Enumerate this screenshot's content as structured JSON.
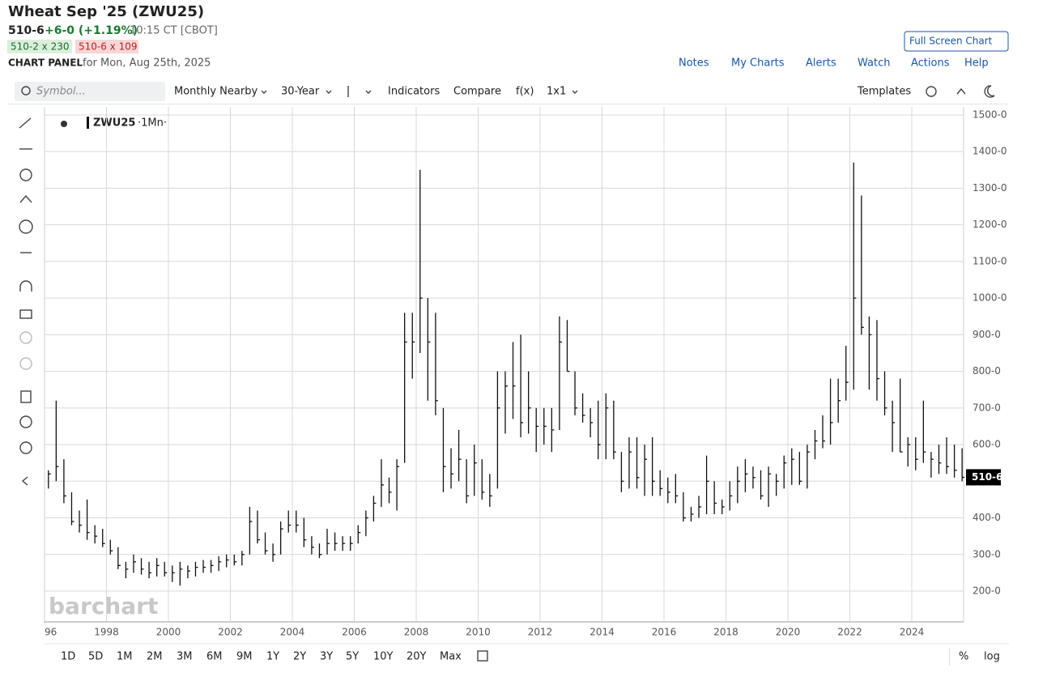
{
  "header": {
    "title": "Wheat Sep '25 (ZWU25)",
    "price": "510-6",
    "change": "+6-0 (+1.19%)",
    "time": "10:15 CT [CBOT]",
    "bid": "510-2 x 230",
    "ask": "510-6 x 109",
    "panel_label": "CHART PANEL",
    "panel_date": "for Mon, Aug 25th, 2025",
    "full_screen": "Full Screen Chart"
  },
  "nav": [
    "Notes",
    "My Charts",
    "Alerts",
    "Watch",
    "Actions",
    "Help"
  ],
  "toolbar": {
    "symbol_placeholder": "Symbol...",
    "items": [
      "Monthly Nearby",
      "30-Year",
      "Indicators",
      "Compare",
      "f(x)",
      "1x1"
    ],
    "templates": "Templates"
  },
  "ranges": [
    "1D",
    "5D",
    "1M",
    "2M",
    "3M",
    "6M",
    "9M",
    "1Y",
    "2Y",
    "3Y",
    "5Y",
    "10Y",
    "20Y",
    "Max"
  ],
  "bottom_options": [
    "%",
    "log"
  ],
  "chart_data": {
    "type": "ohlc",
    "watermark": "barchart",
    "legend_interval": "·1Mn·",
    "last_value_label": "510-6",
    "categories": [
      "96",
      null,
      null,
      null,
      null,
      null,
      null,
      null,
      "1998",
      null,
      null,
      null,
      null,
      null,
      null,
      null,
      "2000",
      null,
      null,
      null,
      null,
      null,
      null,
      null,
      "2002",
      null,
      null,
      null,
      null,
      null,
      null,
      null,
      "2004",
      null,
      null,
      null,
      null,
      null,
      null,
      null,
      "2006",
      null,
      null,
      null,
      null,
      null,
      null,
      null,
      "2008",
      null,
      null,
      null,
      null,
      null,
      null,
      null,
      "2010",
      null,
      null,
      null,
      null,
      null,
      null,
      null,
      "2012",
      null,
      null,
      null,
      null,
      null,
      null,
      null,
      "2014",
      null,
      null,
      null,
      null,
      null,
      null,
      null,
      "2016",
      null,
      null,
      null,
      null,
      null,
      null,
      null,
      "2018",
      null,
      null,
      null,
      null,
      null,
      null,
      null,
      "2020",
      null,
      null,
      null,
      null,
      null,
      null,
      null,
      "2022",
      null,
      null,
      null,
      null,
      null,
      null,
      null,
      "2024",
      null,
      null,
      null,
      null,
      null,
      null
    ],
    "series": [
      {
        "name": "ZWU25",
        "color": "#111111",
        "high": [
          530,
          720,
          560,
          470,
          420,
          450,
          380,
          370,
          340,
          320,
          280,
          300,
          290,
          280,
          290,
          280,
          270,
          280,
          270,
          280,
          285,
          285,
          295,
          300,
          300,
          310,
          430,
          420,
          360,
          330,
          390,
          420,
          420,
          400,
          350,
          330,
          370,
          360,
          350,
          350,
          380,
          420,
          460,
          560,
          510,
          560,
          960,
          960,
          1350,
          1000,
          960,
          700,
          590,
          640,
          560,
          600,
          560,
          520,
          800,
          800,
          880,
          900,
          800,
          700,
          700,
          700,
          950,
          940,
          800,
          740,
          700,
          720,
          740,
          720,
          580,
          620,
          620,
          600,
          620,
          530,
          510,
          520,
          470,
          430,
          460,
          570,
          500,
          450,
          500,
          540,
          560,
          540,
          530,
          540,
          520,
          570,
          590,
          580,
          600,
          640,
          680,
          780,
          780,
          870,
          1370,
          1280,
          950,
          940,
          800,
          720,
          780,
          620,
          620,
          720,
          580,
          600,
          620,
          600,
          590
        ],
        "low": [
          480,
          500,
          440,
          380,
          360,
          340,
          330,
          320,
          300,
          260,
          235,
          250,
          245,
          235,
          240,
          240,
          225,
          215,
          235,
          240,
          250,
          250,
          255,
          265,
          270,
          270,
          300,
          330,
          300,
          280,
          300,
          360,
          360,
          320,
          300,
          290,
          300,
          310,
          310,
          310,
          330,
          350,
          390,
          430,
          440,
          420,
          550,
          780,
          850,
          720,
          680,
          470,
          480,
          500,
          440,
          460,
          450,
          430,
          480,
          630,
          670,
          620,
          630,
          580,
          600,
          580,
          640,
          800,
          680,
          660,
          620,
          560,
          560,
          560,
          470,
          480,
          480,
          460,
          460,
          460,
          440,
          440,
          390,
          390,
          400,
          410,
          410,
          410,
          420,
          440,
          470,
          480,
          450,
          430,
          460,
          480,
          490,
          490,
          480,
          560,
          590,
          600,
          660,
          720,
          750,
          900,
          750,
          720,
          680,
          580,
          580,
          540,
          530,
          550,
          510,
          520,
          520,
          510,
          500
        ],
        "close": [
          520,
          540,
          460,
          390,
          380,
          360,
          350,
          330,
          310,
          270,
          260,
          280,
          260,
          250,
          270,
          250,
          250,
          260,
          255,
          265,
          265,
          270,
          280,
          285,
          280,
          300,
          390,
          340,
          310,
          300,
          370,
          380,
          380,
          340,
          320,
          300,
          330,
          330,
          330,
          330,
          360,
          400,
          440,
          490,
          470,
          540,
          880,
          880,
          1000,
          880,
          720,
          540,
          520,
          560,
          460,
          550,
          470,
          460,
          700,
          760,
          760,
          660,
          700,
          650,
          650,
          640,
          880,
          800,
          700,
          680,
          660,
          600,
          700,
          580,
          500,
          580,
          510,
          560,
          500,
          480,
          470,
          460,
          400,
          410,
          430,
          500,
          440,
          430,
          460,
          500,
          520,
          510,
          460,
          520,
          500,
          550,
          560,
          500,
          580,
          610,
          610,
          660,
          720,
          770,
          1000,
          920,
          900,
          780,
          700,
          660,
          580,
          600,
          560,
          580,
          560,
          550,
          540,
          530,
          510.75
        ]
      }
    ],
    "ylim": [
      116,
      1522
    ],
    "yticks": [
      {
        "value": 200,
        "label": "200-0"
      },
      {
        "value": 300,
        "label": "300-0"
      },
      {
        "value": 400,
        "label": "400-0"
      },
      {
        "value": 500,
        "label": "500-0"
      },
      {
        "value": 600,
        "label": "600-0"
      },
      {
        "value": 700,
        "label": "700-0"
      },
      {
        "value": 800,
        "label": "800-0"
      },
      {
        "value": 900,
        "label": "900-0"
      },
      {
        "value": 1000,
        "label": "1000-0"
      },
      {
        "value": 1100,
        "label": "1100-0"
      },
      {
        "value": 1200,
        "label": "1200-0"
      },
      {
        "value": 1300,
        "label": "1300-0"
      },
      {
        "value": 1400,
        "label": "1400-0"
      },
      {
        "value": 1500,
        "label": "1500-0"
      }
    ],
    "grid": true
  }
}
